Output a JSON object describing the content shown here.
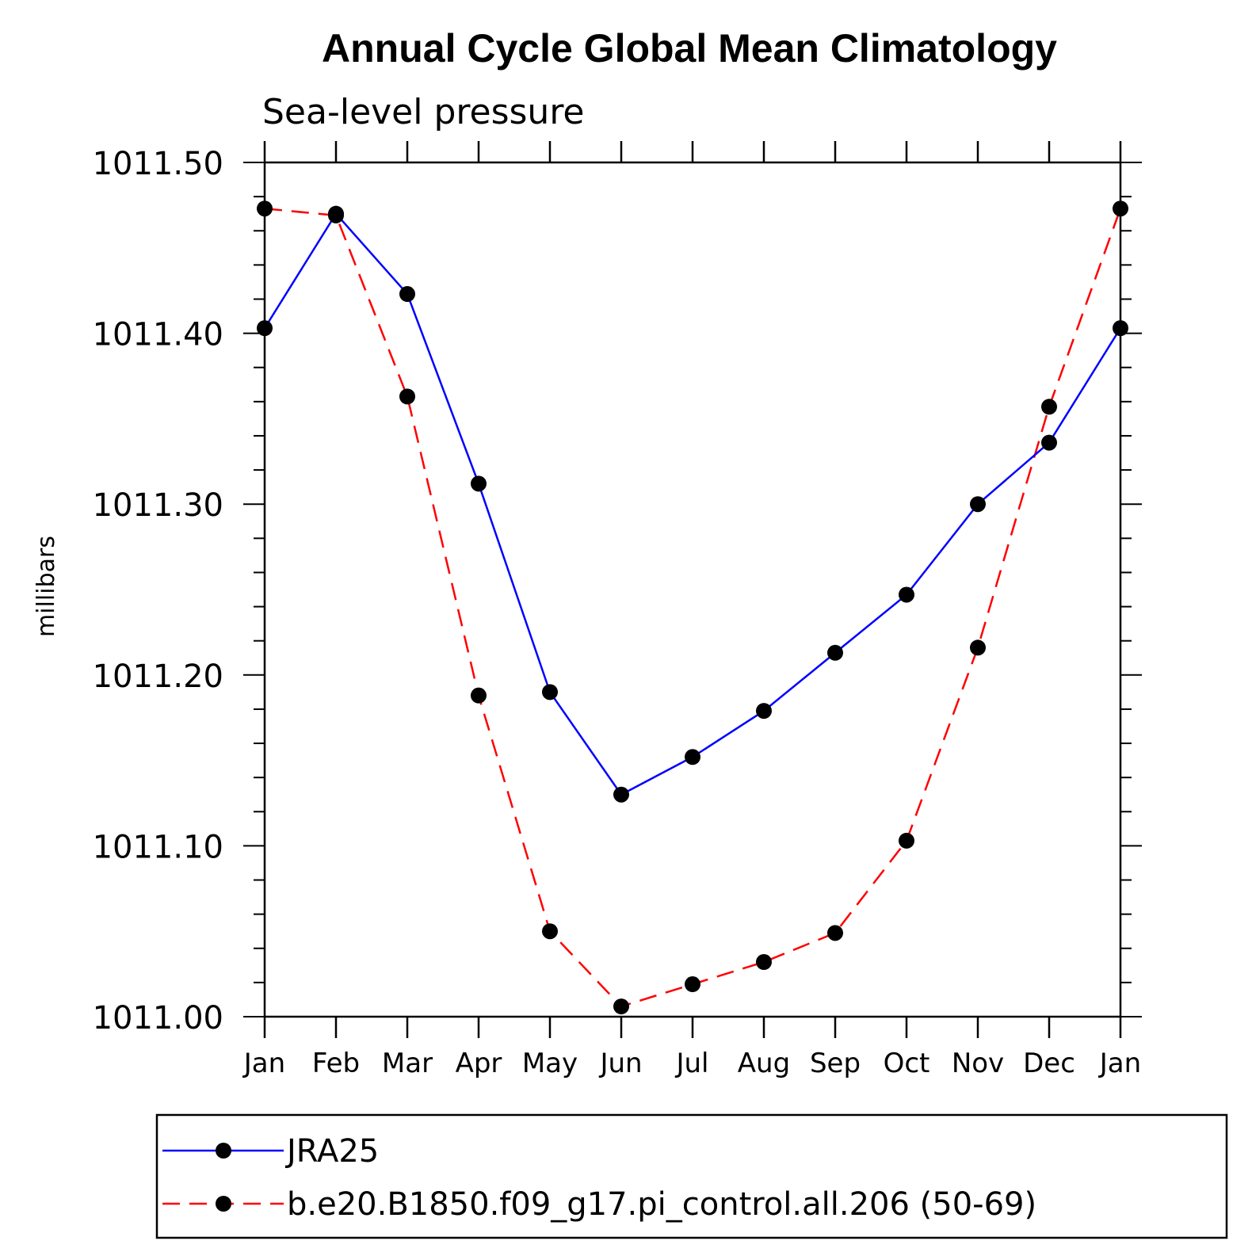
{
  "chart_data": {
    "type": "line",
    "title": "Annual Cycle Global Mean Climatology",
    "subtitle": "Sea-level pressure",
    "ylabel": "millibars",
    "xlabel": "",
    "categories": [
      "Jan",
      "Feb",
      "Mar",
      "Apr",
      "May",
      "Jun",
      "Jul",
      "Aug",
      "Sep",
      "Oct",
      "Nov",
      "Dec",
      "Jan"
    ],
    "ylim": [
      1011.0,
      1011.5
    ],
    "yticks": [
      "1011.00",
      "1011.10",
      "1011.20",
      "1011.30",
      "1011.40",
      "1011.50"
    ],
    "grid": false,
    "legend_position": "bottom",
    "series": [
      {
        "name": "JRA25",
        "color": "#0000ff",
        "line_style": "solid",
        "marker": "filled-circle",
        "values": [
          1011.403,
          1011.47,
          1011.423,
          1011.312,
          1011.19,
          1011.13,
          1011.152,
          1011.179,
          1011.213,
          1011.247,
          1011.3,
          1011.336,
          1011.403
        ]
      },
      {
        "name": "b.e20.B1850.f09_g17.pi_control.all.206 (50-69)",
        "color": "#ff0000",
        "line_style": "dashed",
        "marker": "filled-circle",
        "values": [
          1011.473,
          1011.469,
          1011.363,
          1011.188,
          1011.05,
          1011.006,
          1011.019,
          1011.032,
          1011.049,
          1011.103,
          1011.216,
          1011.357,
          1011.473
        ]
      }
    ]
  }
}
